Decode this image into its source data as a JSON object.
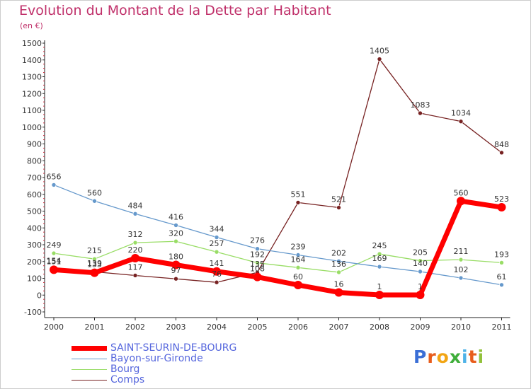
{
  "header": {
    "title": "Evolution du Montant de la Dette par Habitant",
    "unit": "(en €)"
  },
  "brand": {
    "letters": [
      "P",
      "r",
      "o",
      "x",
      "i",
      "t",
      "i"
    ],
    "colors": [
      "#3b6fd6",
      "#e85d1c",
      "#f2a514",
      "#3fae3a",
      "#4fb3e8",
      "#e85d1c",
      "#92c13a"
    ]
  },
  "chart_data": {
    "type": "line",
    "x": [
      "2000",
      "2001",
      "2002",
      "2003",
      "2004",
      "2005",
      "2006",
      "2007",
      "2008",
      "2009",
      "2010",
      "2011"
    ],
    "ylim": [
      -100,
      1500
    ],
    "yticks": [
      "-100",
      "0",
      "100",
      "200",
      "300",
      "400",
      "500",
      "600",
      "700",
      "800",
      "900",
      "1000",
      "1100",
      "1200",
      "1300",
      "1400",
      "1500"
    ],
    "grid": false,
    "legend_position": "bottom-left",
    "series": [
      {
        "name": "SAINT-SEURIN-DE-BOURG",
        "color": "#ff0000",
        "values": [
          151,
          133,
          220,
          180,
          141,
          108,
          60,
          16,
          1,
          1,
          560,
          523
        ],
        "labels": [
          "151",
          "133",
          "220",
          "180",
          "141",
          "108",
          "60",
          "16",
          "1",
          "1",
          "560",
          "523"
        ]
      },
      {
        "name": "Bayon-sur-Gironde",
        "color": "#6699cc",
        "values": [
          656,
          560,
          484,
          416,
          344,
          276,
          239,
          202,
          169,
          140,
          102,
          61
        ],
        "labels": [
          "656",
          "560",
          "484",
          "416",
          "344",
          "276",
          "239",
          "202",
          "169",
          "140",
          "102",
          "61"
        ]
      },
      {
        "name": "Bourg",
        "color": "#99dd66",
        "values": [
          249,
          215,
          312,
          320,
          257,
          192,
          164,
          136,
          245,
          205,
          211,
          193
        ],
        "labels": [
          "249",
          "215",
          "312",
          "320",
          "257",
          "192",
          "164",
          "136",
          "245",
          "205",
          "211",
          "193"
        ]
      },
      {
        "name": "Comps",
        "color": "#772222",
        "values": [
          154,
          139,
          117,
          97,
          76,
          135,
          551,
          521,
          1405,
          1083,
          1034,
          848
        ],
        "labels": [
          "154",
          "139",
          "117",
          "97",
          "76",
          "135",
          "551",
          "521",
          "1405",
          "1083",
          "1034",
          "848"
        ]
      }
    ]
  }
}
